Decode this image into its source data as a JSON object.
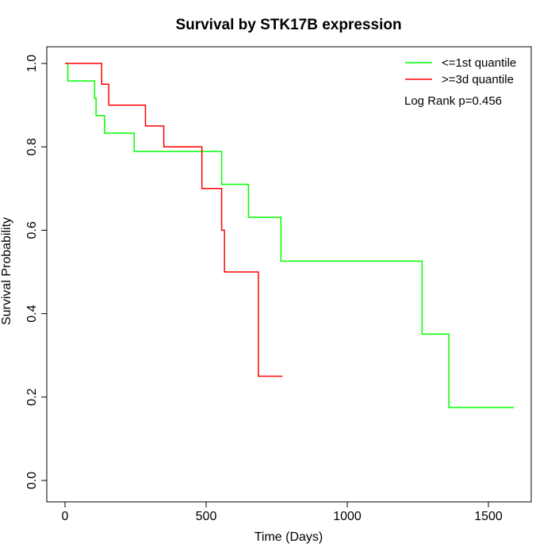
{
  "chart_data": {
    "type": "line",
    "title": "Survival by STK17B expression",
    "xlabel": "Time (Days)",
    "ylabel": "Survival Probability",
    "xlim": [
      0,
      1650
    ],
    "ylim": [
      0,
      1.0
    ],
    "x_ticks": [
      0,
      500,
      1000,
      1500
    ],
    "x_tick_labels": [
      "0",
      "500",
      "1000",
      "1500"
    ],
    "y_ticks": [
      0.0,
      0.2,
      0.4,
      0.6,
      0.8,
      1.0
    ],
    "y_tick_labels": [
      "0.0",
      "0.2",
      "0.4",
      "0.6",
      "0.8",
      "1.0"
    ],
    "grid": false,
    "legend_position": "top-right",
    "annotation": "Log Rank p=0.456",
    "series": [
      {
        "name": "<=1st quantile",
        "color": "#00ff00",
        "x": [
          5,
          10,
          105,
          110,
          140,
          245,
          555,
          650,
          765,
          1265,
          1360,
          1590
        ],
        "y": [
          1.0,
          0.958,
          0.917,
          0.875,
          0.833,
          0.789,
          0.71,
          0.631,
          0.526,
          0.351,
          0.175,
          0.175
        ]
      },
      {
        "name": ">=3d quantile",
        "color": "#ff0000",
        "x": [
          0,
          130,
          155,
          285,
          350,
          485,
          555,
          565,
          685,
          770
        ],
        "y": [
          1.0,
          0.95,
          0.9,
          0.85,
          0.8,
          0.7,
          0.6,
          0.5,
          0.25,
          0.25
        ]
      }
    ]
  }
}
